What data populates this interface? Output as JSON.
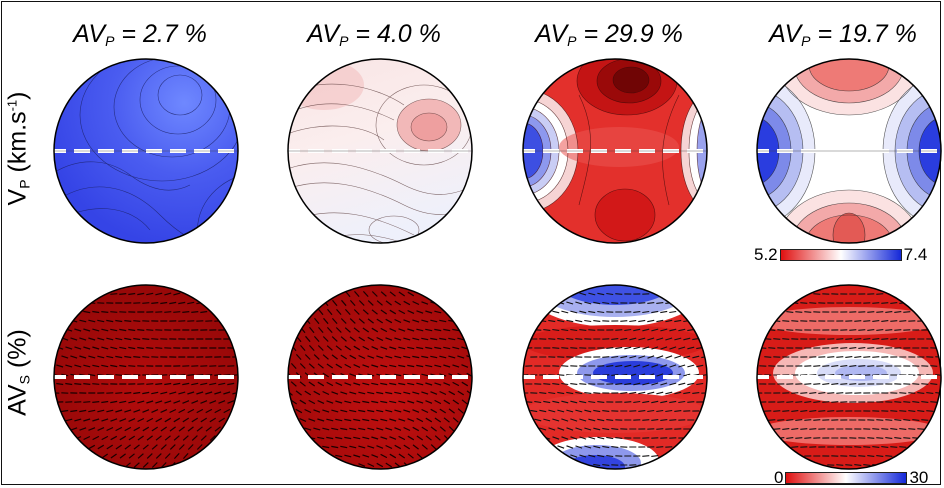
{
  "columns": [
    {
      "label_main": "AV",
      "label_sub": "P",
      "label_value": " = 2.7 %"
    },
    {
      "label_main": "AV",
      "label_sub": "P",
      "label_value": " = 4.0 %"
    },
    {
      "label_main": "AV",
      "label_sub": "P",
      "label_value": " = 29.9 %"
    },
    {
      "label_main": "AV",
      "label_sub": "P",
      "label_value": " = 19.7 %"
    }
  ],
  "rows": [
    {
      "label_main": "V",
      "label_sub": "P",
      "label_units_open": " (km.s",
      "label_sup": "-1",
      "label_units_close": ")"
    },
    {
      "label_main": "AV",
      "label_sub": "S",
      "label_units_open": " (%)",
      "label_sup": "",
      "label_units_close": ""
    }
  ],
  "colorbars": [
    {
      "min": "5.2",
      "max": "7.4"
    },
    {
      "min": "0",
      "max": "30"
    }
  ],
  "colors": {
    "red": "#d90d0d",
    "white": "#ffffff",
    "blue": "#1020d8",
    "dark_red": "#8a0606"
  }
}
